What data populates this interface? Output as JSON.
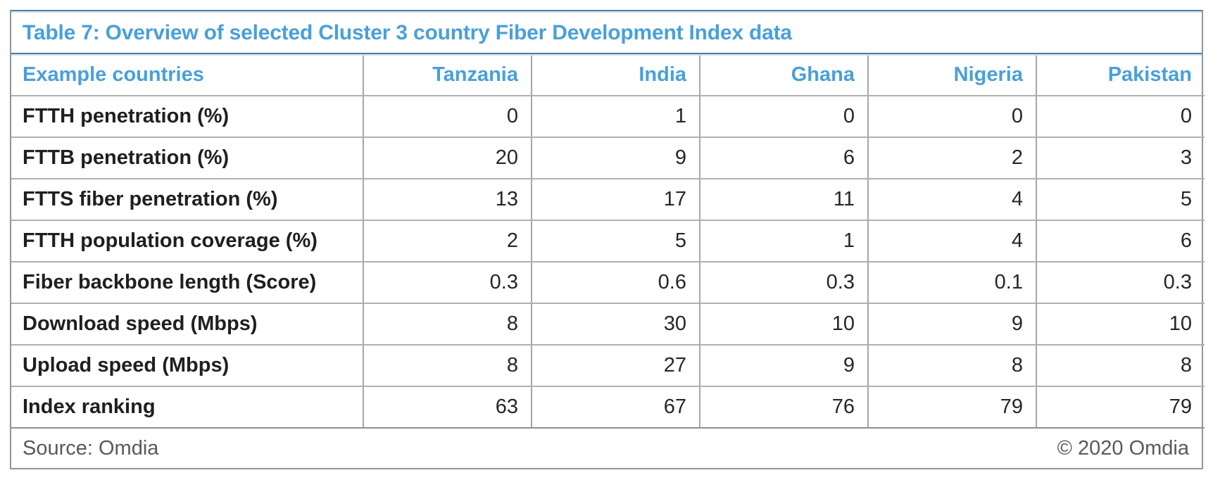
{
  "title": "Table 7: Overview of selected Cluster 3 country Fiber Development Index data",
  "table": {
    "columns": [
      "Example countries",
      "Tanzania",
      "India",
      "Ghana",
      "Nigeria",
      "Pakistan"
    ],
    "rows": [
      {
        "label": "FTTH penetration (%)",
        "values": [
          "0",
          "1",
          "0",
          "0",
          "0"
        ]
      },
      {
        "label": "FTTB penetration (%)",
        "values": [
          "20",
          "9",
          "6",
          "2",
          "3"
        ]
      },
      {
        "label": "FTTS fiber penetration (%)",
        "values": [
          "13",
          "17",
          "11",
          "4",
          "5"
        ]
      },
      {
        "label": "FTTH population coverage (%)",
        "values": [
          "2",
          "5",
          "1",
          "4",
          "6"
        ]
      },
      {
        "label": "Fiber backbone length (Score)",
        "values": [
          "0.3",
          "0.6",
          "0.3",
          "0.1",
          "0.3"
        ]
      },
      {
        "label": "Download speed (Mbps)",
        "values": [
          "8",
          "30",
          "10",
          "9",
          "10"
        ]
      },
      {
        "label": "Upload speed (Mbps)",
        "values": [
          "8",
          "27",
          "9",
          "8",
          "8"
        ]
      },
      {
        "label": "Index ranking",
        "values": [
          "63",
          "67",
          "76",
          "79",
          "79"
        ]
      }
    ]
  },
  "footer": {
    "source": "Source: Omdia",
    "copyright": "© 2020 Omdia"
  },
  "colors": {
    "accent_blue": "#49a0d9",
    "title_separator": "#4f7f9f",
    "outer_border": "#8a97a3",
    "gridline": "#a6a6a6",
    "body_text": "#262626",
    "footer_text": "#595959"
  },
  "chart_data": {
    "type": "table",
    "title": "Table 7: Overview of selected Cluster 3 country Fiber Development Index data",
    "categories": [
      "Tanzania",
      "India",
      "Ghana",
      "Nigeria",
      "Pakistan"
    ],
    "series": [
      {
        "name": "FTTH penetration (%)",
        "values": [
          0,
          1,
          0,
          0,
          0
        ]
      },
      {
        "name": "FTTB penetration (%)",
        "values": [
          20,
          9,
          6,
          2,
          3
        ]
      },
      {
        "name": "FTTS fiber penetration (%)",
        "values": [
          13,
          17,
          11,
          4,
          5
        ]
      },
      {
        "name": "FTTH population coverage (%)",
        "values": [
          2,
          5,
          1,
          4,
          6
        ]
      },
      {
        "name": "Fiber backbone length (Score)",
        "values": [
          0.3,
          0.6,
          0.3,
          0.1,
          0.3
        ]
      },
      {
        "name": "Download speed (Mbps)",
        "values": [
          8,
          30,
          10,
          9,
          10
        ]
      },
      {
        "name": "Upload speed (Mbps)",
        "values": [
          8,
          27,
          9,
          8,
          8
        ]
      },
      {
        "name": "Index ranking",
        "values": [
          63,
          67,
          76,
          79,
          79
        ]
      }
    ],
    "source": "Omdia",
    "copyright": "© 2020 Omdia"
  }
}
